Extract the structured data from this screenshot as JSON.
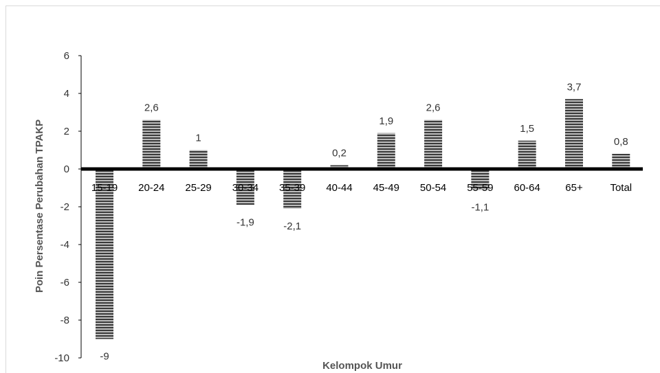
{
  "chart_data": {
    "type": "bar",
    "title": "",
    "xlabel": "Kelompok Umur",
    "ylabel": "Poin Persentase Perubahan TPAKP",
    "ylim": [
      -10,
      6
    ],
    "yticks": [
      6,
      4,
      2,
      0,
      -2,
      -4,
      -6,
      -8,
      -10
    ],
    "categories": [
      "15-19",
      "20-24",
      "25-29",
      "30-34",
      "35-39",
      "40-44",
      "45-49",
      "50-54",
      "55-59",
      "60-64",
      "65+",
      "Total"
    ],
    "values": [
      -9,
      2.6,
      1,
      -1.9,
      -2.1,
      0.2,
      1.9,
      2.6,
      -1.1,
      1.5,
      3.7,
      0.8
    ],
    "value_labels": [
      "-9",
      "2,6",
      "1",
      "-1,9",
      "-2,1",
      "0,2",
      "1,9",
      "2,6",
      "-1,1",
      "1,5",
      "3,7",
      "0,8"
    ],
    "grid": false,
    "legend": "none",
    "bar_pattern": "horizontal-stripes",
    "colors": {
      "bar_stripe": "#3a3a3a",
      "bar_gap": "#bdbdbd",
      "axis": "#000000",
      "frame": "#d9d9d9"
    }
  }
}
